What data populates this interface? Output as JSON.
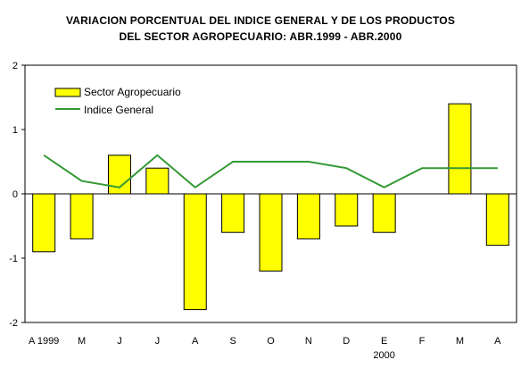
{
  "chart_data": {
    "type": "bar",
    "title_line1": "VARIACION PORCENTUAL DEL INDICE GENERAL Y DE LOS PRODUCTOS",
    "title_line2": "DEL SECTOR AGROPECUARIO: ABR.1999 - ABR.2000",
    "xlabel": "",
    "ylabel": "",
    "ylim": [
      -2,
      2
    ],
    "yticks": [
      2,
      1,
      0,
      -1,
      -2
    ],
    "categories": [
      "A 1999",
      "M",
      "J",
      "J",
      "A",
      "S",
      "O",
      "N",
      "D",
      "E",
      "F",
      "M",
      "A"
    ],
    "year_label": "2000",
    "series": [
      {
        "name": "Sector Agropecuario",
        "type": "bar",
        "color": "#FFFF00",
        "values": [
          -0.9,
          -0.7,
          0.6,
          0.4,
          -1.8,
          -0.6,
          -1.2,
          -0.7,
          -0.5,
          -0.6,
          0.0,
          1.4,
          -0.8
        ]
      },
      {
        "name": "Indice General",
        "type": "line",
        "color": "#339933",
        "values": [
          0.6,
          0.2,
          0.1,
          0.6,
          0.1,
          0.5,
          0.5,
          0.5,
          0.4,
          0.1,
          0.4,
          0.4,
          0.4
        ]
      }
    ],
    "grid": false,
    "legend_position": "top-left"
  }
}
